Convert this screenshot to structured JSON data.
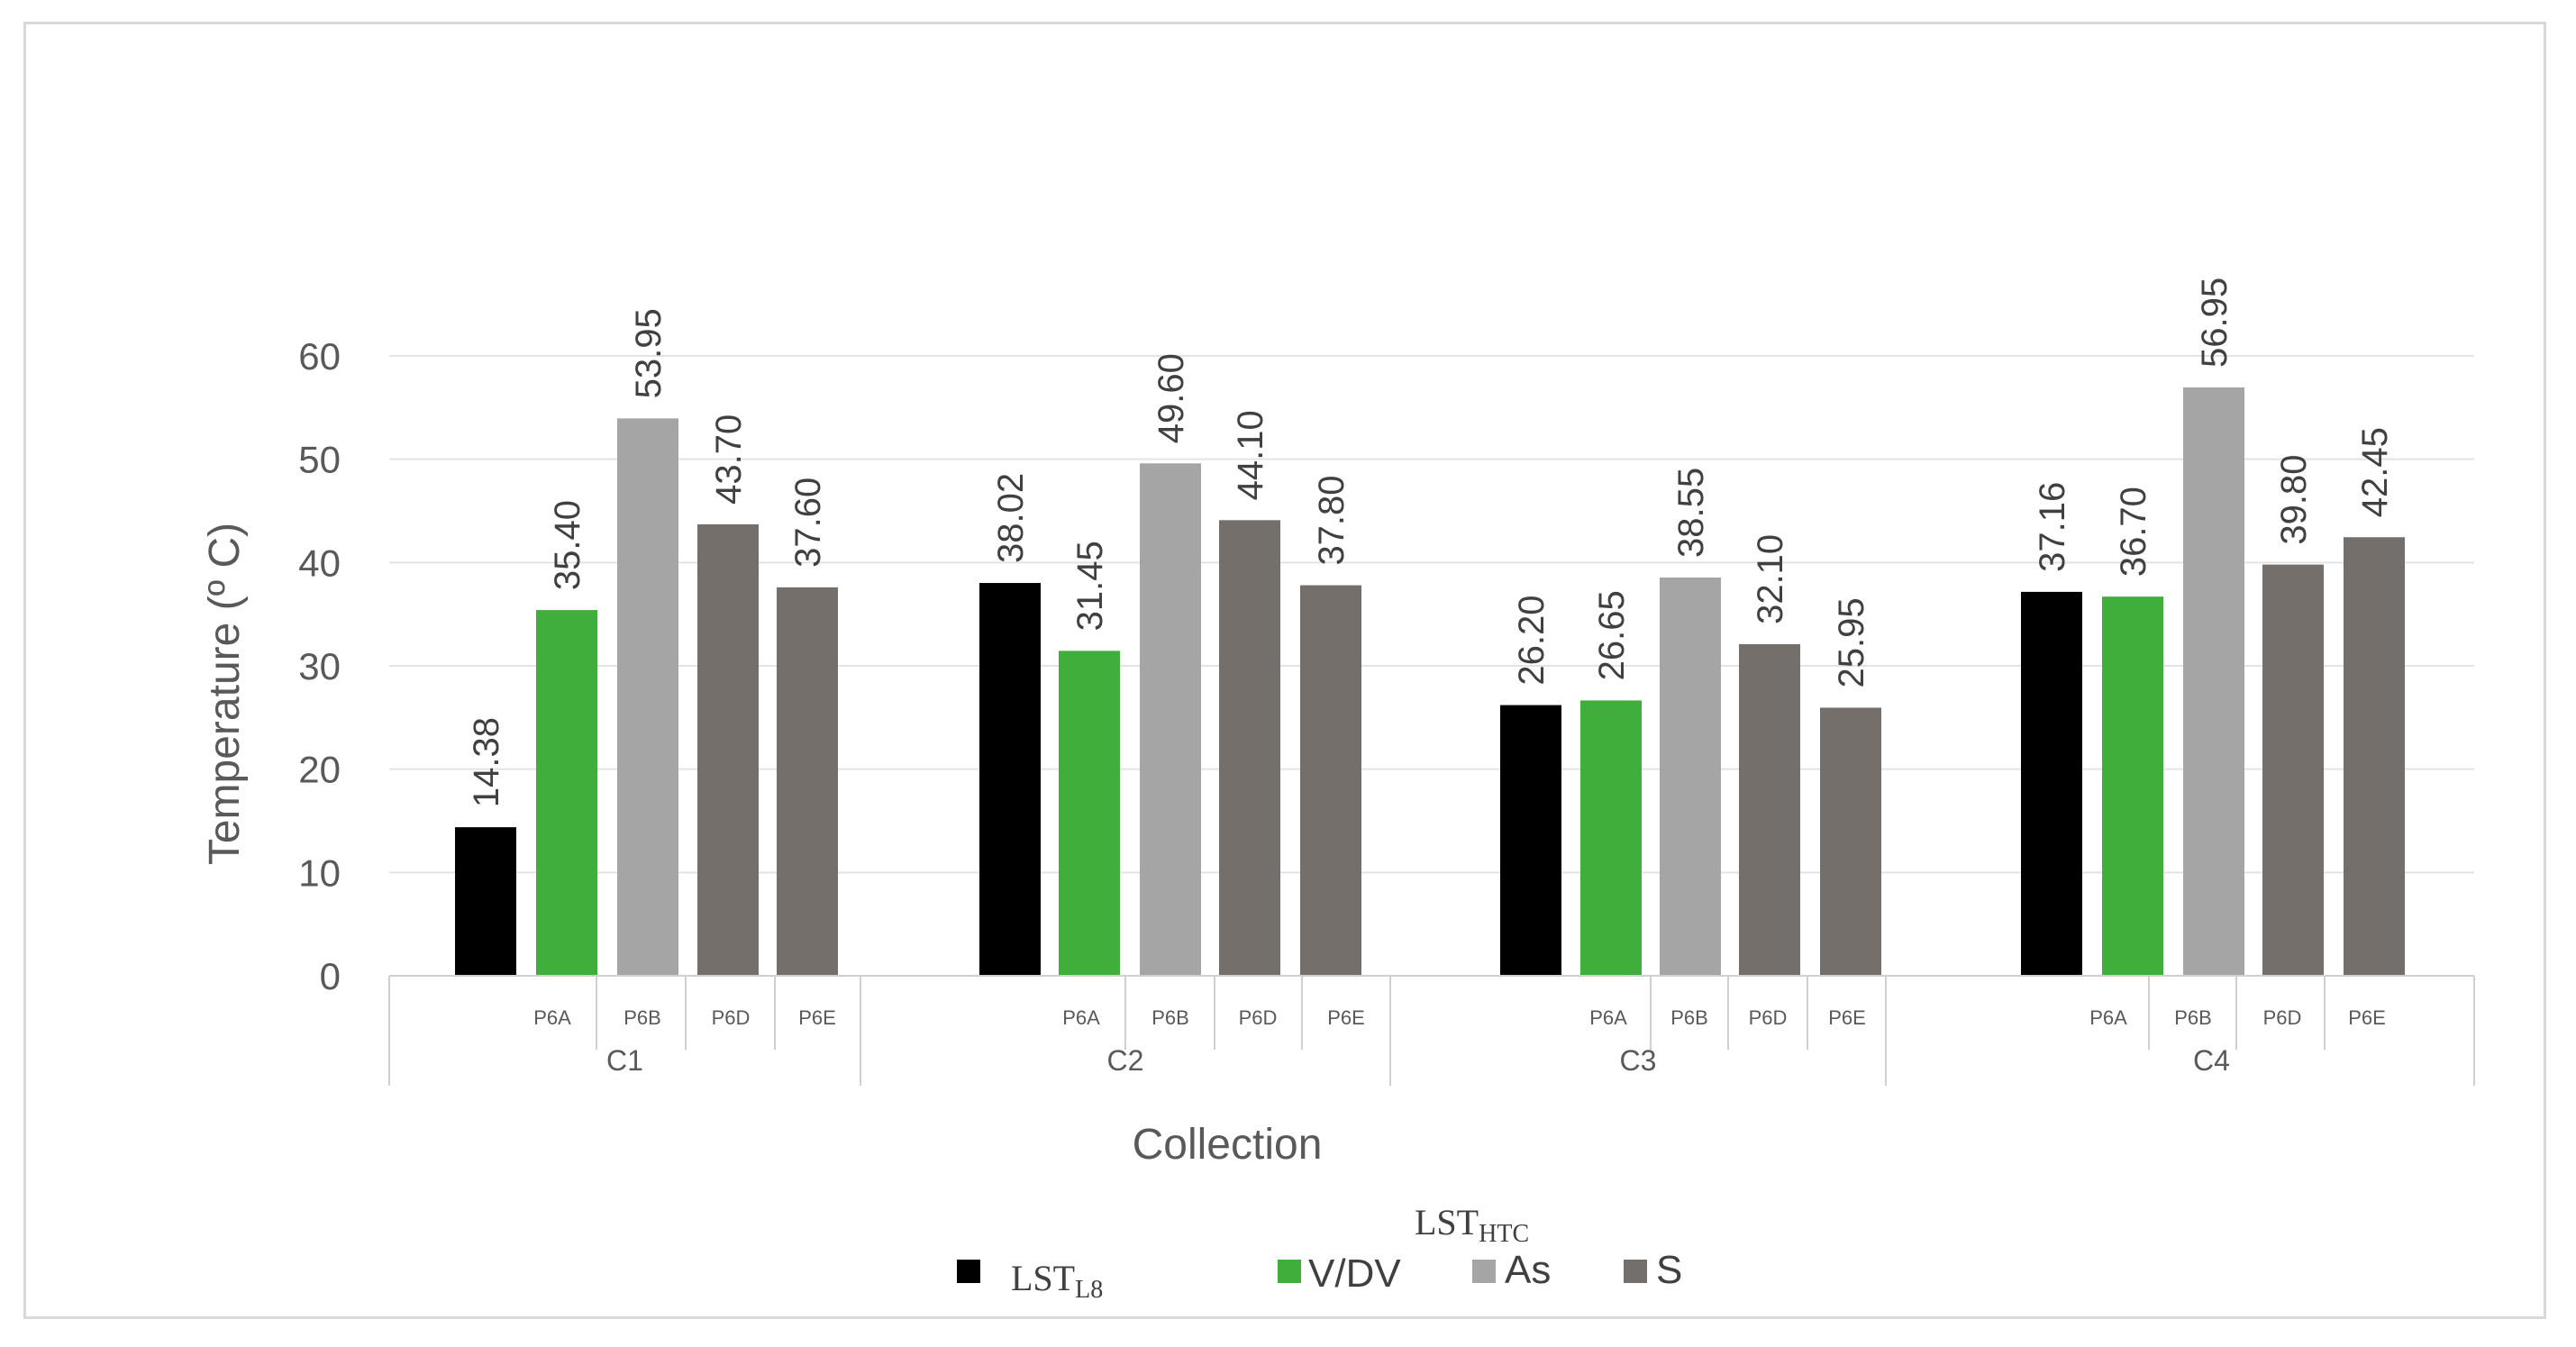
{
  "chart_data": {
    "type": "bar",
    "ylabel": "Temperature (º C)",
    "xlabel": "Collection",
    "ylim": [
      0,
      60
    ],
    "yticks": [
      0,
      10,
      20,
      30,
      40,
      50,
      60
    ],
    "grid": true,
    "groups": [
      {
        "name": "C1",
        "subcats": [
          "P6A",
          "P6B",
          "P6D",
          "P6E"
        ],
        "values": [
          14.38,
          35.4,
          53.95,
          43.7,
          37.6
        ],
        "labels": [
          "14.38",
          "35.40",
          "53.95",
          "43.70",
          "37.60"
        ]
      },
      {
        "name": "C2",
        "subcats": [
          "P6A",
          "P6B",
          "P6D",
          "P6E"
        ],
        "values": [
          38.02,
          31.45,
          49.6,
          44.1,
          37.8
        ],
        "labels": [
          "38.02",
          "31.45",
          "49.60",
          "44.10",
          "37.80"
        ]
      },
      {
        "name": "C3",
        "subcats": [
          "P6A",
          "P6B",
          "P6D",
          "P6E"
        ],
        "values": [
          26.2,
          26.65,
          38.55,
          32.1,
          25.95
        ],
        "labels": [
          "26.20",
          "26.65",
          "38.55",
          "32.10",
          "25.95"
        ]
      },
      {
        "name": "C4",
        "subcats": [
          "P6A",
          "P6B",
          "P6D",
          "P6E"
        ],
        "values": [
          37.16,
          36.7,
          56.95,
          39.8,
          42.45
        ],
        "labels": [
          "37.16",
          "36.70",
          "56.95",
          "39.80",
          "42.45"
        ]
      }
    ],
    "series_colors": [
      "#000000",
      "#3fae3a",
      "#a5a5a5",
      "#756f6c",
      "#756f6c"
    ],
    "legend": {
      "position": "bottom",
      "group_title": {
        "main": "LST",
        "sub": "HTC"
      },
      "entries": [
        {
          "main": "LST",
          "sub": "L8",
          "color": "#000000"
        },
        {
          "main": "V/DV",
          "sub": "",
          "color": "#3fae3a"
        },
        {
          "main": "As",
          "sub": "",
          "color": "#a5a5a5"
        },
        {
          "main": "S",
          "sub": "",
          "color": "#756f6c"
        }
      ]
    }
  }
}
